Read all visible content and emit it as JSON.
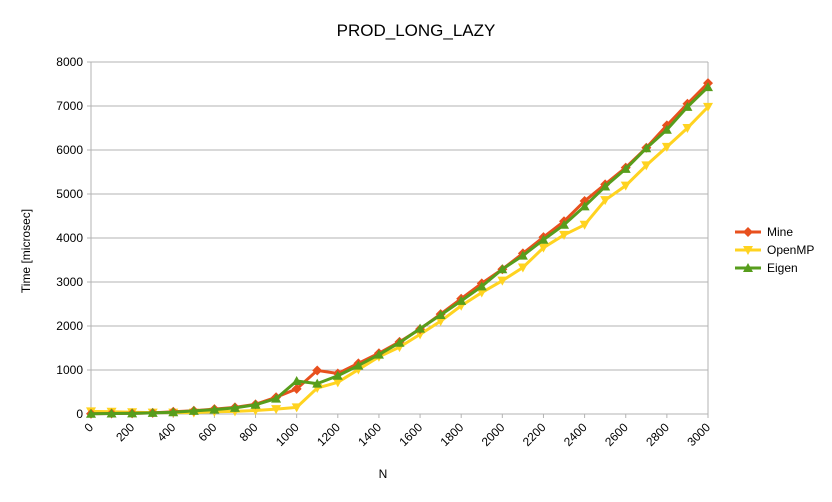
{
  "chart_data": {
    "type": "line",
    "title": "PROD_LONG_LAZY",
    "xlabel": "N",
    "ylabel": "Time [microsec]",
    "xlim": [
      0,
      3000
    ],
    "ylim": [
      0,
      8000
    ],
    "x_ticks": [
      0,
      200,
      400,
      600,
      800,
      1000,
      1200,
      1400,
      1600,
      1800,
      2000,
      2200,
      2400,
      2600,
      2800,
      3000
    ],
    "y_ticks": [
      0,
      1000,
      2000,
      3000,
      4000,
      5000,
      6000,
      7000,
      8000
    ],
    "grid": "horizontal",
    "legend_position": "right",
    "x": [
      0,
      100,
      200,
      300,
      400,
      500,
      600,
      700,
      800,
      900,
      1000,
      1100,
      1200,
      1300,
      1400,
      1500,
      1600,
      1700,
      1800,
      1900,
      2000,
      2100,
      2200,
      2300,
      2400,
      2500,
      2600,
      2700,
      2800,
      2900,
      3000
    ],
    "series": [
      {
        "name": "Mine",
        "color": "#e8501e",
        "marker": "diamond",
        "values": [
          5,
          10,
          15,
          25,
          50,
          75,
          110,
          150,
          220,
          380,
          570,
          990,
          920,
          1150,
          1380,
          1640,
          1930,
          2270,
          2620,
          2970,
          3290,
          3650,
          4020,
          4380,
          4840,
          5220,
          5600,
          6050,
          6560,
          7050,
          7520
        ]
      },
      {
        "name": "OpenMP",
        "color": "#ffd320",
        "marker": "triangle-down",
        "values": [
          60,
          50,
          40,
          30,
          30,
          30,
          50,
          60,
          80,
          110,
          150,
          590,
          720,
          1010,
          1300,
          1520,
          1810,
          2110,
          2460,
          2760,
          3030,
          3330,
          3780,
          4070,
          4300,
          4860,
          5190,
          5650,
          6070,
          6500,
          6980
        ]
      },
      {
        "name": "Eigen",
        "color": "#579d1c",
        "marker": "triangle-up",
        "values": [
          5,
          10,
          15,
          25,
          40,
          70,
          100,
          140,
          210,
          350,
          750,
          690,
          870,
          1100,
          1350,
          1620,
          1940,
          2250,
          2570,
          2900,
          3290,
          3600,
          3960,
          4300,
          4720,
          5170,
          5570,
          6040,
          6460,
          6980,
          7430
        ]
      }
    ]
  }
}
